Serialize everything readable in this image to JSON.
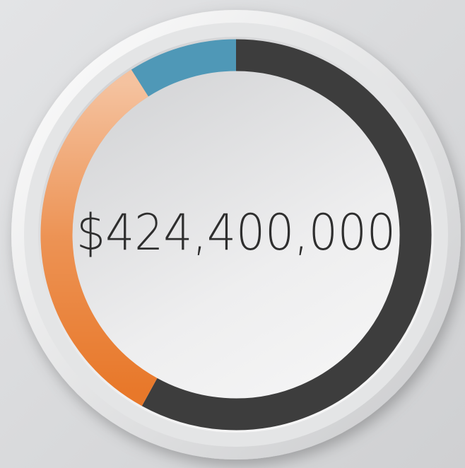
{
  "chart_data": {
    "type": "donut",
    "center_label": "$424,400,000",
    "values": [
      58,
      33,
      9
    ],
    "colors": [
      "#3d3d3d",
      "#e8782a",
      "#4f98b7"
    ]
  }
}
